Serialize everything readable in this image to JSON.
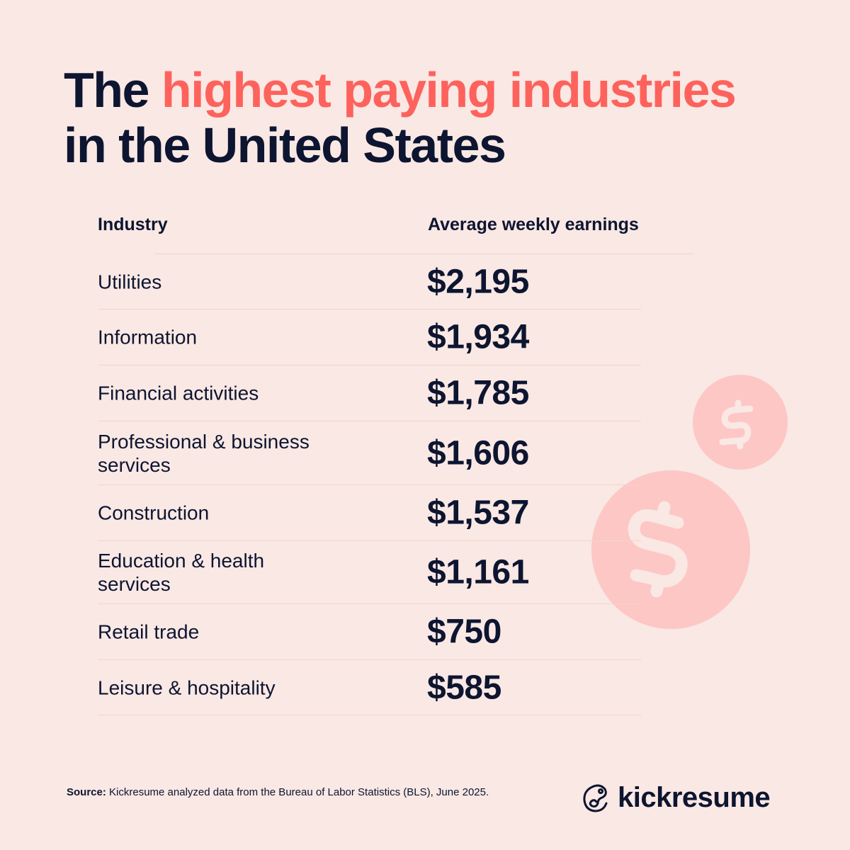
{
  "title": {
    "part1": "The ",
    "highlight": "highest paying industries",
    "part2": "in the United States"
  },
  "colors": {
    "background": "#f9e8e4",
    "text": "#0d1530",
    "accent": "#fe625c",
    "coin": "#fdc7c5"
  },
  "chart_data": {
    "type": "table",
    "columns": [
      "Industry",
      "Average weekly earnings"
    ],
    "rows": [
      {
        "industry": "Utilities",
        "earnings": "$2,195",
        "value": 2195
      },
      {
        "industry": "Information",
        "earnings": "$1,934",
        "value": 1934
      },
      {
        "industry": "Financial activities",
        "earnings": "$1,785",
        "value": 1785
      },
      {
        "industry": "Professional & business services",
        "earnings": "$1,606",
        "value": 1606
      },
      {
        "industry": "Construction",
        "earnings": "$1,537",
        "value": 1537
      },
      {
        "industry": "Education & health services",
        "earnings": "$1,161",
        "value": 1161
      },
      {
        "industry": "Retail trade",
        "earnings": "$750",
        "value": 750
      },
      {
        "industry": "Leisure & hospitality",
        "earnings": "$585",
        "value": 585
      }
    ]
  },
  "footer": {
    "source_label": "Source:",
    "source_text": " Kickresume analyzed data from the Bureau of Labor Statistics (BLS), June 2025.",
    "logo": "kickresume"
  },
  "icons": {
    "coin": "dollar-coin-icon",
    "logo": "chameleon-logo-icon"
  }
}
